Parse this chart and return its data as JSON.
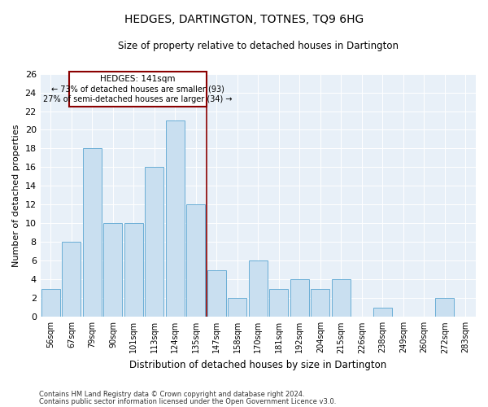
{
  "title": "HEDGES, DARTINGTON, TOTNES, TQ9 6HG",
  "subtitle": "Size of property relative to detached houses in Dartington",
  "xlabel": "Distribution of detached houses by size in Dartington",
  "ylabel": "Number of detached properties",
  "categories": [
    "56sqm",
    "67sqm",
    "79sqm",
    "90sqm",
    "101sqm",
    "113sqm",
    "124sqm",
    "135sqm",
    "147sqm",
    "158sqm",
    "170sqm",
    "181sqm",
    "192sqm",
    "204sqm",
    "215sqm",
    "226sqm",
    "238sqm",
    "249sqm",
    "260sqm",
    "272sqm",
    "283sqm"
  ],
  "values": [
    3,
    8,
    18,
    10,
    10,
    16,
    21,
    12,
    5,
    2,
    6,
    3,
    4,
    3,
    4,
    0,
    1,
    0,
    0,
    2,
    0
  ],
  "bar_color": "#c9dff0",
  "bar_edge_color": "#6aaed6",
  "reference_line_label": "HEDGES: 141sqm",
  "annotation_line1": "← 73% of detached houses are smaller (93)",
  "annotation_line2": "27% of semi-detached houses are larger (34) →",
  "ylim": [
    0,
    26
  ],
  "yticks": [
    0,
    2,
    4,
    6,
    8,
    10,
    12,
    14,
    16,
    18,
    20,
    22,
    24,
    26
  ],
  "bg_color": "#e8f0f8",
  "footer_line1": "Contains HM Land Registry data © Crown copyright and database right 2024.",
  "footer_line2": "Contains public sector information licensed under the Open Government Licence v3.0."
}
